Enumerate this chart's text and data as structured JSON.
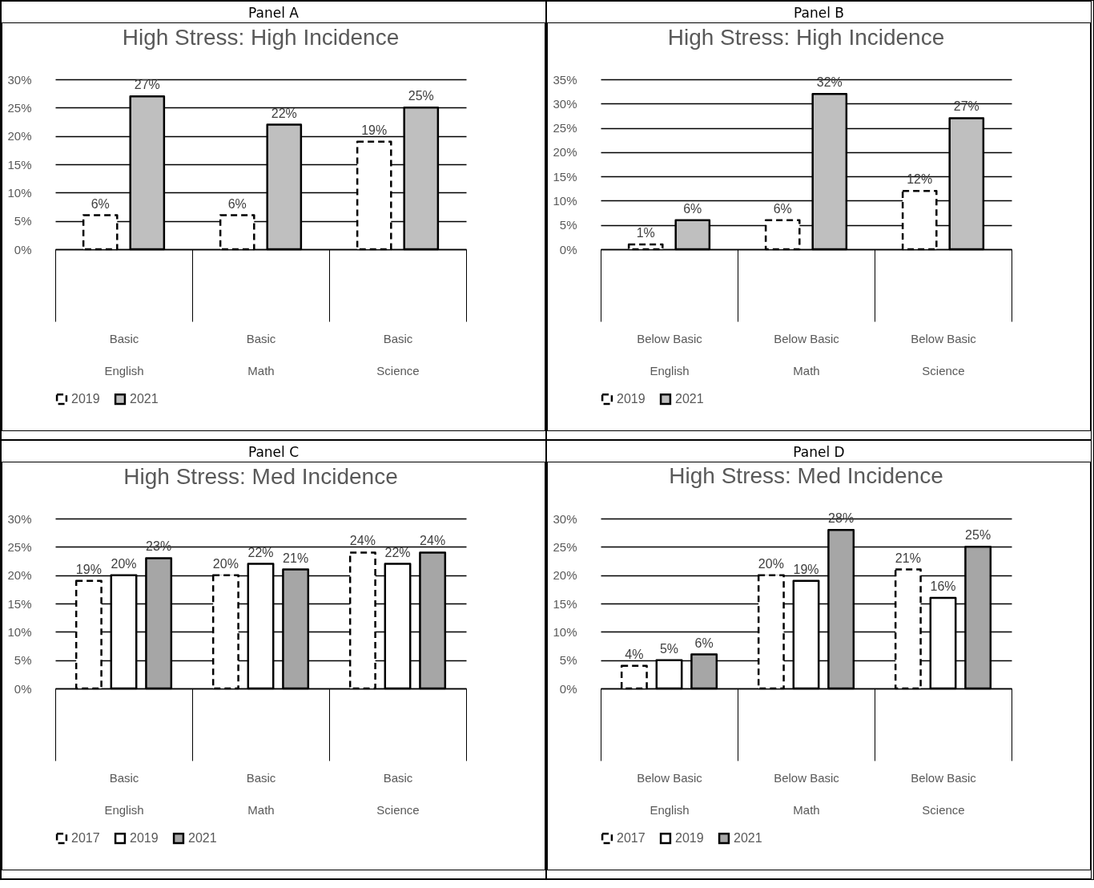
{
  "chart_data": [
    {
      "type": "bar",
      "title": "High Stress: High Incidence",
      "annotations": [
        "Panel A"
      ],
      "categories": [
        "Basic\nEnglish",
        "Basic\nMath",
        "Basic\nScience"
      ],
      "ylim": [
        0,
        30
      ],
      "yticks": [
        {
          "value": 0,
          "label": "0%"
        },
        {
          "value": 5,
          "label": "5%"
        },
        {
          "value": 10,
          "label": "10%"
        },
        {
          "value": 15,
          "label": "15%"
        },
        {
          "value": 20,
          "label": "20%"
        },
        {
          "value": 25,
          "label": "25%"
        },
        {
          "value": 30,
          "label": "30%"
        }
      ],
      "grid": "y",
      "legend": "bottom",
      "series": [
        {
          "name": "2019",
          "color": "#ffffff",
          "line_style": "dashed",
          "values": [
            6,
            6,
            19
          ],
          "value_labels": [
            "6%",
            "6%",
            "19%"
          ]
        },
        {
          "name": "2021",
          "color": "#bfbfbf",
          "line_style": "solid",
          "values": [
            27,
            22,
            25
          ],
          "value_labels": [
            "27%",
            "22%",
            "25%"
          ]
        }
      ]
    },
    {
      "type": "bar",
      "title": "High Stress: High Incidence",
      "annotations": [
        "Panel B"
      ],
      "categories": [
        "Below Basic\nEnglish",
        "Below Basic\nMath",
        "Below Basic\nScience"
      ],
      "ylim": [
        0,
        35
      ],
      "yticks": [
        {
          "value": 0,
          "label": "0%"
        },
        {
          "value": 5,
          "label": "5%"
        },
        {
          "value": 10,
          "label": "10%"
        },
        {
          "value": 15,
          "label": "15%"
        },
        {
          "value": 20,
          "label": "20%"
        },
        {
          "value": 25,
          "label": "25%"
        },
        {
          "value": 30,
          "label": "30%"
        },
        {
          "value": 35,
          "label": "35%"
        }
      ],
      "grid": "y",
      "legend": "bottom",
      "series": [
        {
          "name": "2019",
          "color": "#ffffff",
          "line_style": "dashed",
          "values": [
            1,
            6,
            12
          ],
          "value_labels": [
            "1%",
            "6%",
            "12%"
          ]
        },
        {
          "name": "2021",
          "color": "#bfbfbf",
          "line_style": "solid",
          "values": [
            6,
            32,
            27
          ],
          "value_labels": [
            "6%",
            "32%",
            "27%"
          ]
        }
      ]
    },
    {
      "type": "bar",
      "title": "High Stress: Med Incidence",
      "annotations": [
        "Panel C"
      ],
      "categories": [
        "Basic\nEnglish",
        "Basic\nMath",
        "Basic\nScience"
      ],
      "ylim": [
        0,
        30
      ],
      "yticks": [
        {
          "value": 0,
          "label": "0%"
        },
        {
          "value": 5,
          "label": "5%"
        },
        {
          "value": 10,
          "label": "10%"
        },
        {
          "value": 15,
          "label": "15%"
        },
        {
          "value": 20,
          "label": "20%"
        },
        {
          "value": 25,
          "label": "25%"
        },
        {
          "value": 30,
          "label": "30%"
        }
      ],
      "grid": "y",
      "legend": "bottom",
      "series": [
        {
          "name": "2017",
          "color": "#ffffff",
          "line_style": "dashed",
          "values": [
            19,
            20,
            24
          ],
          "value_labels": [
            "19%",
            "20%",
            "24%"
          ]
        },
        {
          "name": "2019",
          "color": "#ffffff",
          "line_style": "solid",
          "values": [
            20,
            22,
            22
          ],
          "value_labels": [
            "20%",
            "22%",
            "22%"
          ]
        },
        {
          "name": "2021",
          "color": "#a6a6a6",
          "line_style": "solid",
          "values": [
            23,
            21,
            24
          ],
          "value_labels": [
            "23%",
            "21%",
            "24%"
          ]
        }
      ]
    },
    {
      "type": "bar",
      "title": "High Stress: Med Incidence",
      "annotations": [
        "Panel D"
      ],
      "categories": [
        "Below Basic\nEnglish",
        "Below Basic\nMath",
        "Below Basic\nScience"
      ],
      "ylim": [
        0,
        30
      ],
      "yticks": [
        {
          "value": 0,
          "label": "0%"
        },
        {
          "value": 5,
          "label": "5%"
        },
        {
          "value": 10,
          "label": "10%"
        },
        {
          "value": 15,
          "label": "15%"
        },
        {
          "value": 20,
          "label": "20%"
        },
        {
          "value": 25,
          "label": "25%"
        },
        {
          "value": 30,
          "label": "30%"
        }
      ],
      "grid": "y",
      "legend": "bottom",
      "series": [
        {
          "name": "2017",
          "color": "#ffffff",
          "line_style": "dashed",
          "values": [
            4,
            20,
            21
          ],
          "value_labels": [
            "4%",
            "20%",
            "21%"
          ]
        },
        {
          "name": "2019",
          "color": "#ffffff",
          "line_style": "solid",
          "values": [
            5,
            19,
            16
          ],
          "value_labels": [
            "5%",
            "19%",
            "16%"
          ]
        },
        {
          "name": "2021",
          "color": "#a6a6a6",
          "line_style": "solid",
          "values": [
            6,
            28,
            25
          ],
          "value_labels": [
            "6%",
            "28%",
            "25%"
          ]
        }
      ]
    }
  ]
}
